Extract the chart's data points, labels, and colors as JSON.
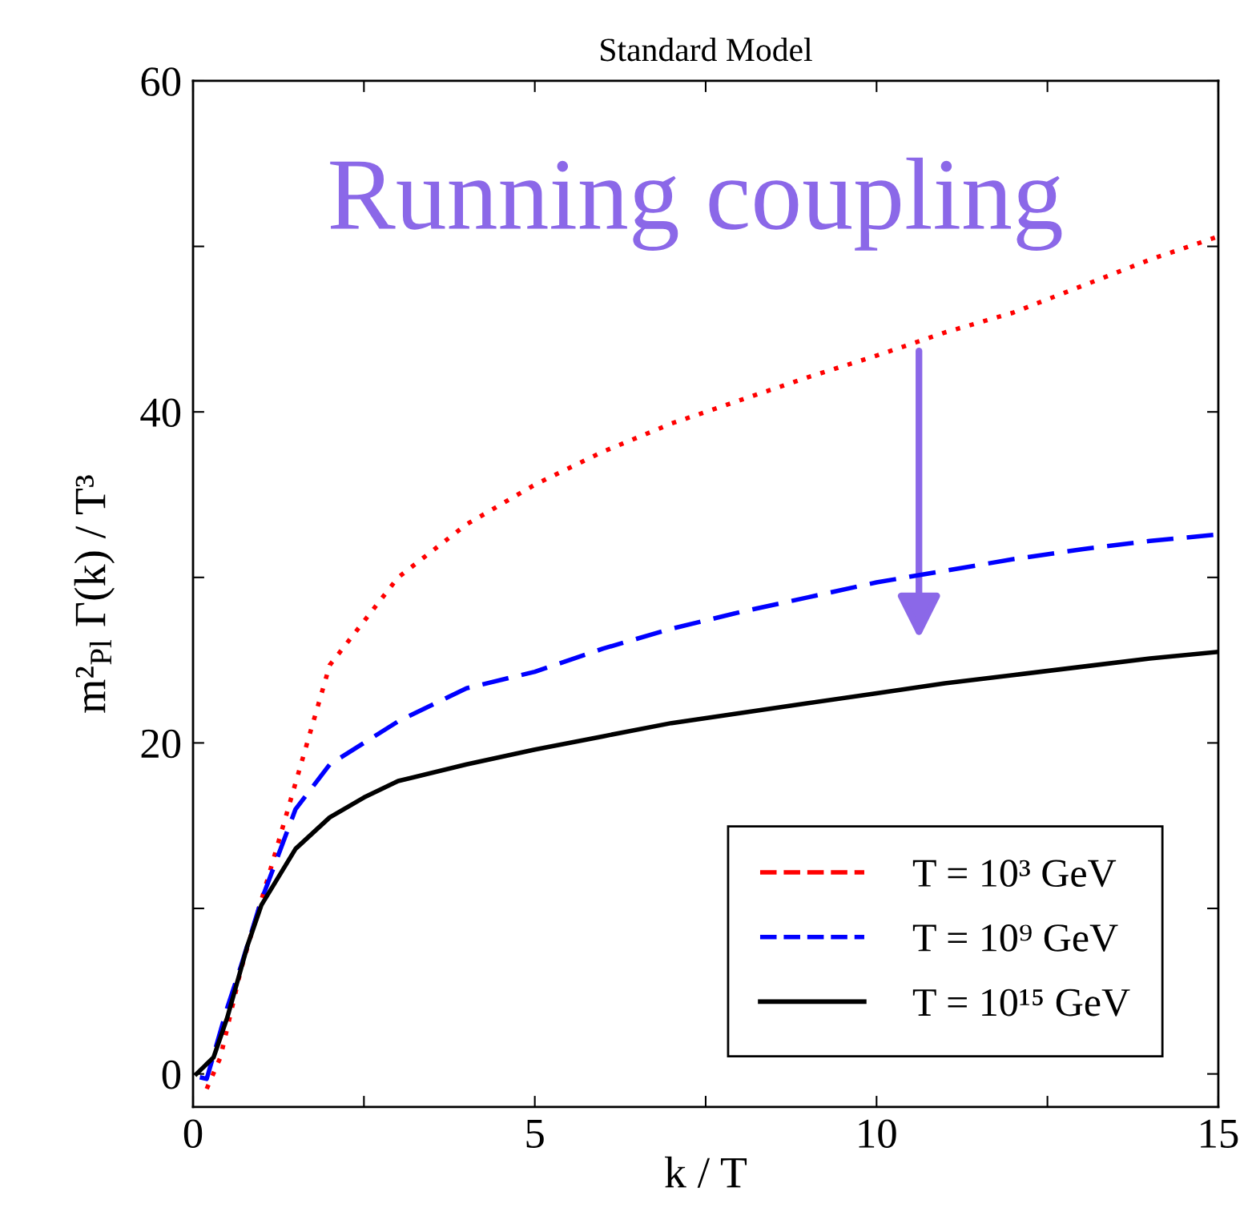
{
  "chart_data": {
    "type": "line",
    "title": "Standard Model",
    "xlabel": "k / T",
    "ylabel": "m²$_{Pl}$ Γ(k) / T³",
    "xlim": [
      0,
      15
    ],
    "ylim": [
      -2,
      60
    ],
    "xticks": [
      0,
      {
        "value": 2.5,
        "label": null
      },
      5,
      {
        "value": 7.5,
        "label": null
      },
      10,
      {
        "value": 12.5,
        "label": null
      },
      15
    ],
    "yticks": [
      0,
      {
        "value": 10,
        "label": null
      },
      20,
      {
        "value": 30,
        "label": null
      },
      40,
      {
        "value": 50,
        "label": null
      },
      60
    ],
    "grid": false,
    "legend": "bottom right",
    "marker": "none",
    "annotations": [
      "Running coupling"
    ],
    "series": [
      {
        "name": "T = 10³ GeV",
        "color": "#ff0000",
        "line_style": "dotted",
        "x": [
          0.2,
          0.4,
          0.7,
          1.15,
          2,
          3,
          4,
          5,
          6,
          7,
          8,
          9,
          10,
          11,
          12,
          13,
          14,
          15
        ],
        "values": [
          -0.9,
          1.0,
          6.3,
          12.6,
          24.7,
          30.0,
          33.2,
          35.6,
          37.6,
          39.3,
          40.7,
          42.1,
          43.4,
          44.8,
          46.0,
          47.6,
          49.2,
          50.6
        ]
      },
      {
        "name": "T = 10⁹ GeV",
        "color": "#0000ff",
        "line_style": "dashed",
        "x": [
          0.1,
          0.2,
          0.5,
          0.7,
          1,
          1.5,
          2,
          3,
          4,
          5,
          6,
          7,
          8,
          9,
          10,
          11,
          12,
          13,
          14,
          15
        ],
        "values": [
          -0.2,
          -0.3,
          4.0,
          6.5,
          10.5,
          16.0,
          18.7,
          21.3,
          23.3,
          24.3,
          25.7,
          26.9,
          27.9,
          28.8,
          29.7,
          30.4,
          31.1,
          31.7,
          32.2,
          32.6
        ]
      },
      {
        "name": "T = 10¹⁵ GeV",
        "color": "#000000",
        "line_style": "solid",
        "x": [
          0.05,
          0.3,
          0.5,
          0.8,
          1,
          1.5,
          2,
          2.5,
          3,
          4,
          5,
          6,
          7,
          8,
          9,
          10,
          11,
          12,
          13,
          14,
          15
        ],
        "values": [
          0.0,
          1.0,
          3.4,
          7.8,
          10.2,
          13.6,
          15.5,
          16.7,
          17.7,
          18.7,
          19.6,
          20.4,
          21.2,
          21.8,
          22.4,
          23.0,
          23.6,
          24.1,
          24.6,
          25.1,
          25.5
        ]
      }
    ]
  }
}
